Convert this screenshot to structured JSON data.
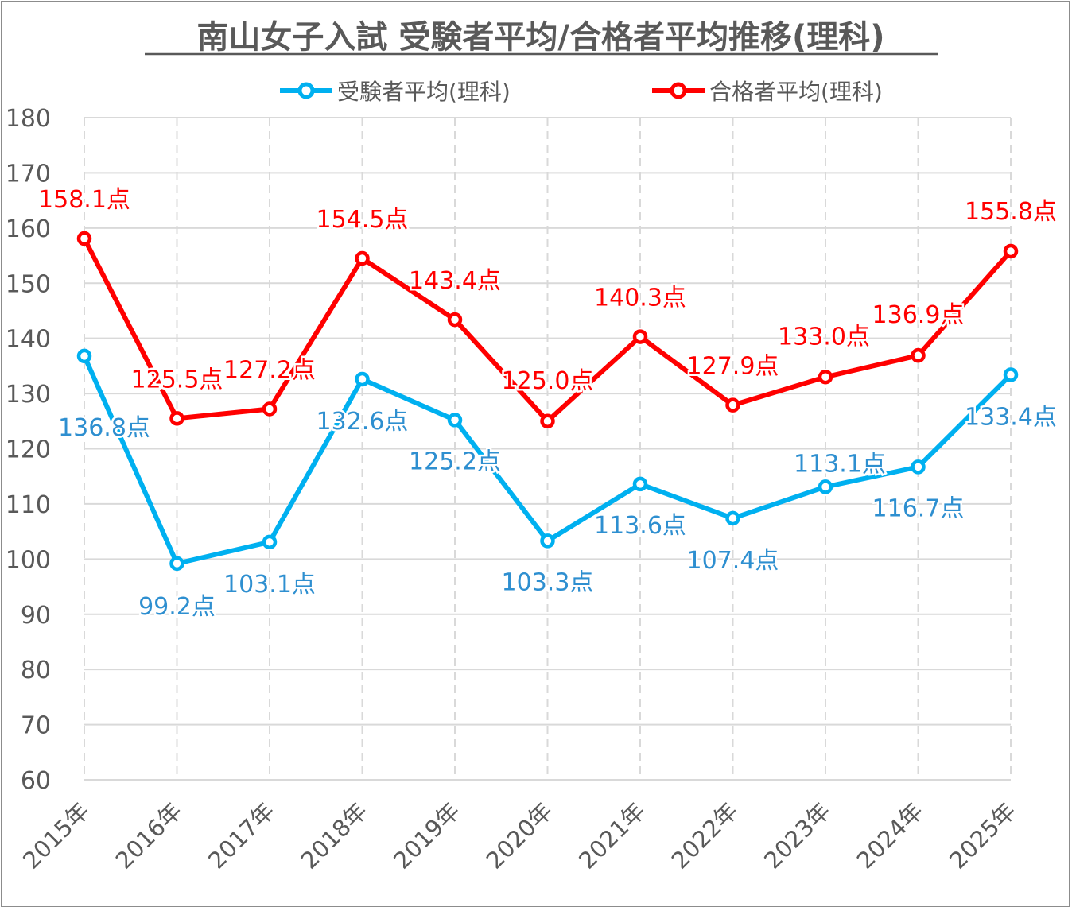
{
  "chart_data": {
    "type": "line",
    "title": "南山女子入試 受験者平均/合格者平均推移(理科)",
    "xlabel": "",
    "ylabel": "",
    "ylim": [
      60,
      180
    ],
    "yticks": [
      60,
      70,
      80,
      90,
      100,
      110,
      120,
      130,
      140,
      150,
      160,
      170,
      180
    ],
    "grid": true,
    "legend_position": "top-center",
    "categories": [
      "2015年",
      "2016年",
      "2017年",
      "2018年",
      "2019年",
      "2020年",
      "2021年",
      "2022年",
      "2023年",
      "2024年",
      "2025年"
    ],
    "label_suffix": "点",
    "series": [
      {
        "name": "受験者平均(理科)",
        "color": "#00b0f0",
        "label_color": "#2e8fd0",
        "values": [
          136.8,
          99.2,
          103.1,
          132.6,
          125.2,
          103.3,
          113.6,
          107.4,
          113.1,
          116.7,
          133.4
        ]
      },
      {
        "name": "合格者平均(理科)",
        "color": "#ff0000",
        "label_color": "#ff0000",
        "values": [
          158.1,
          125.5,
          127.2,
          154.5,
          143.4,
          125.0,
          140.3,
          127.9,
          133.0,
          136.9,
          155.8
        ]
      }
    ]
  }
}
